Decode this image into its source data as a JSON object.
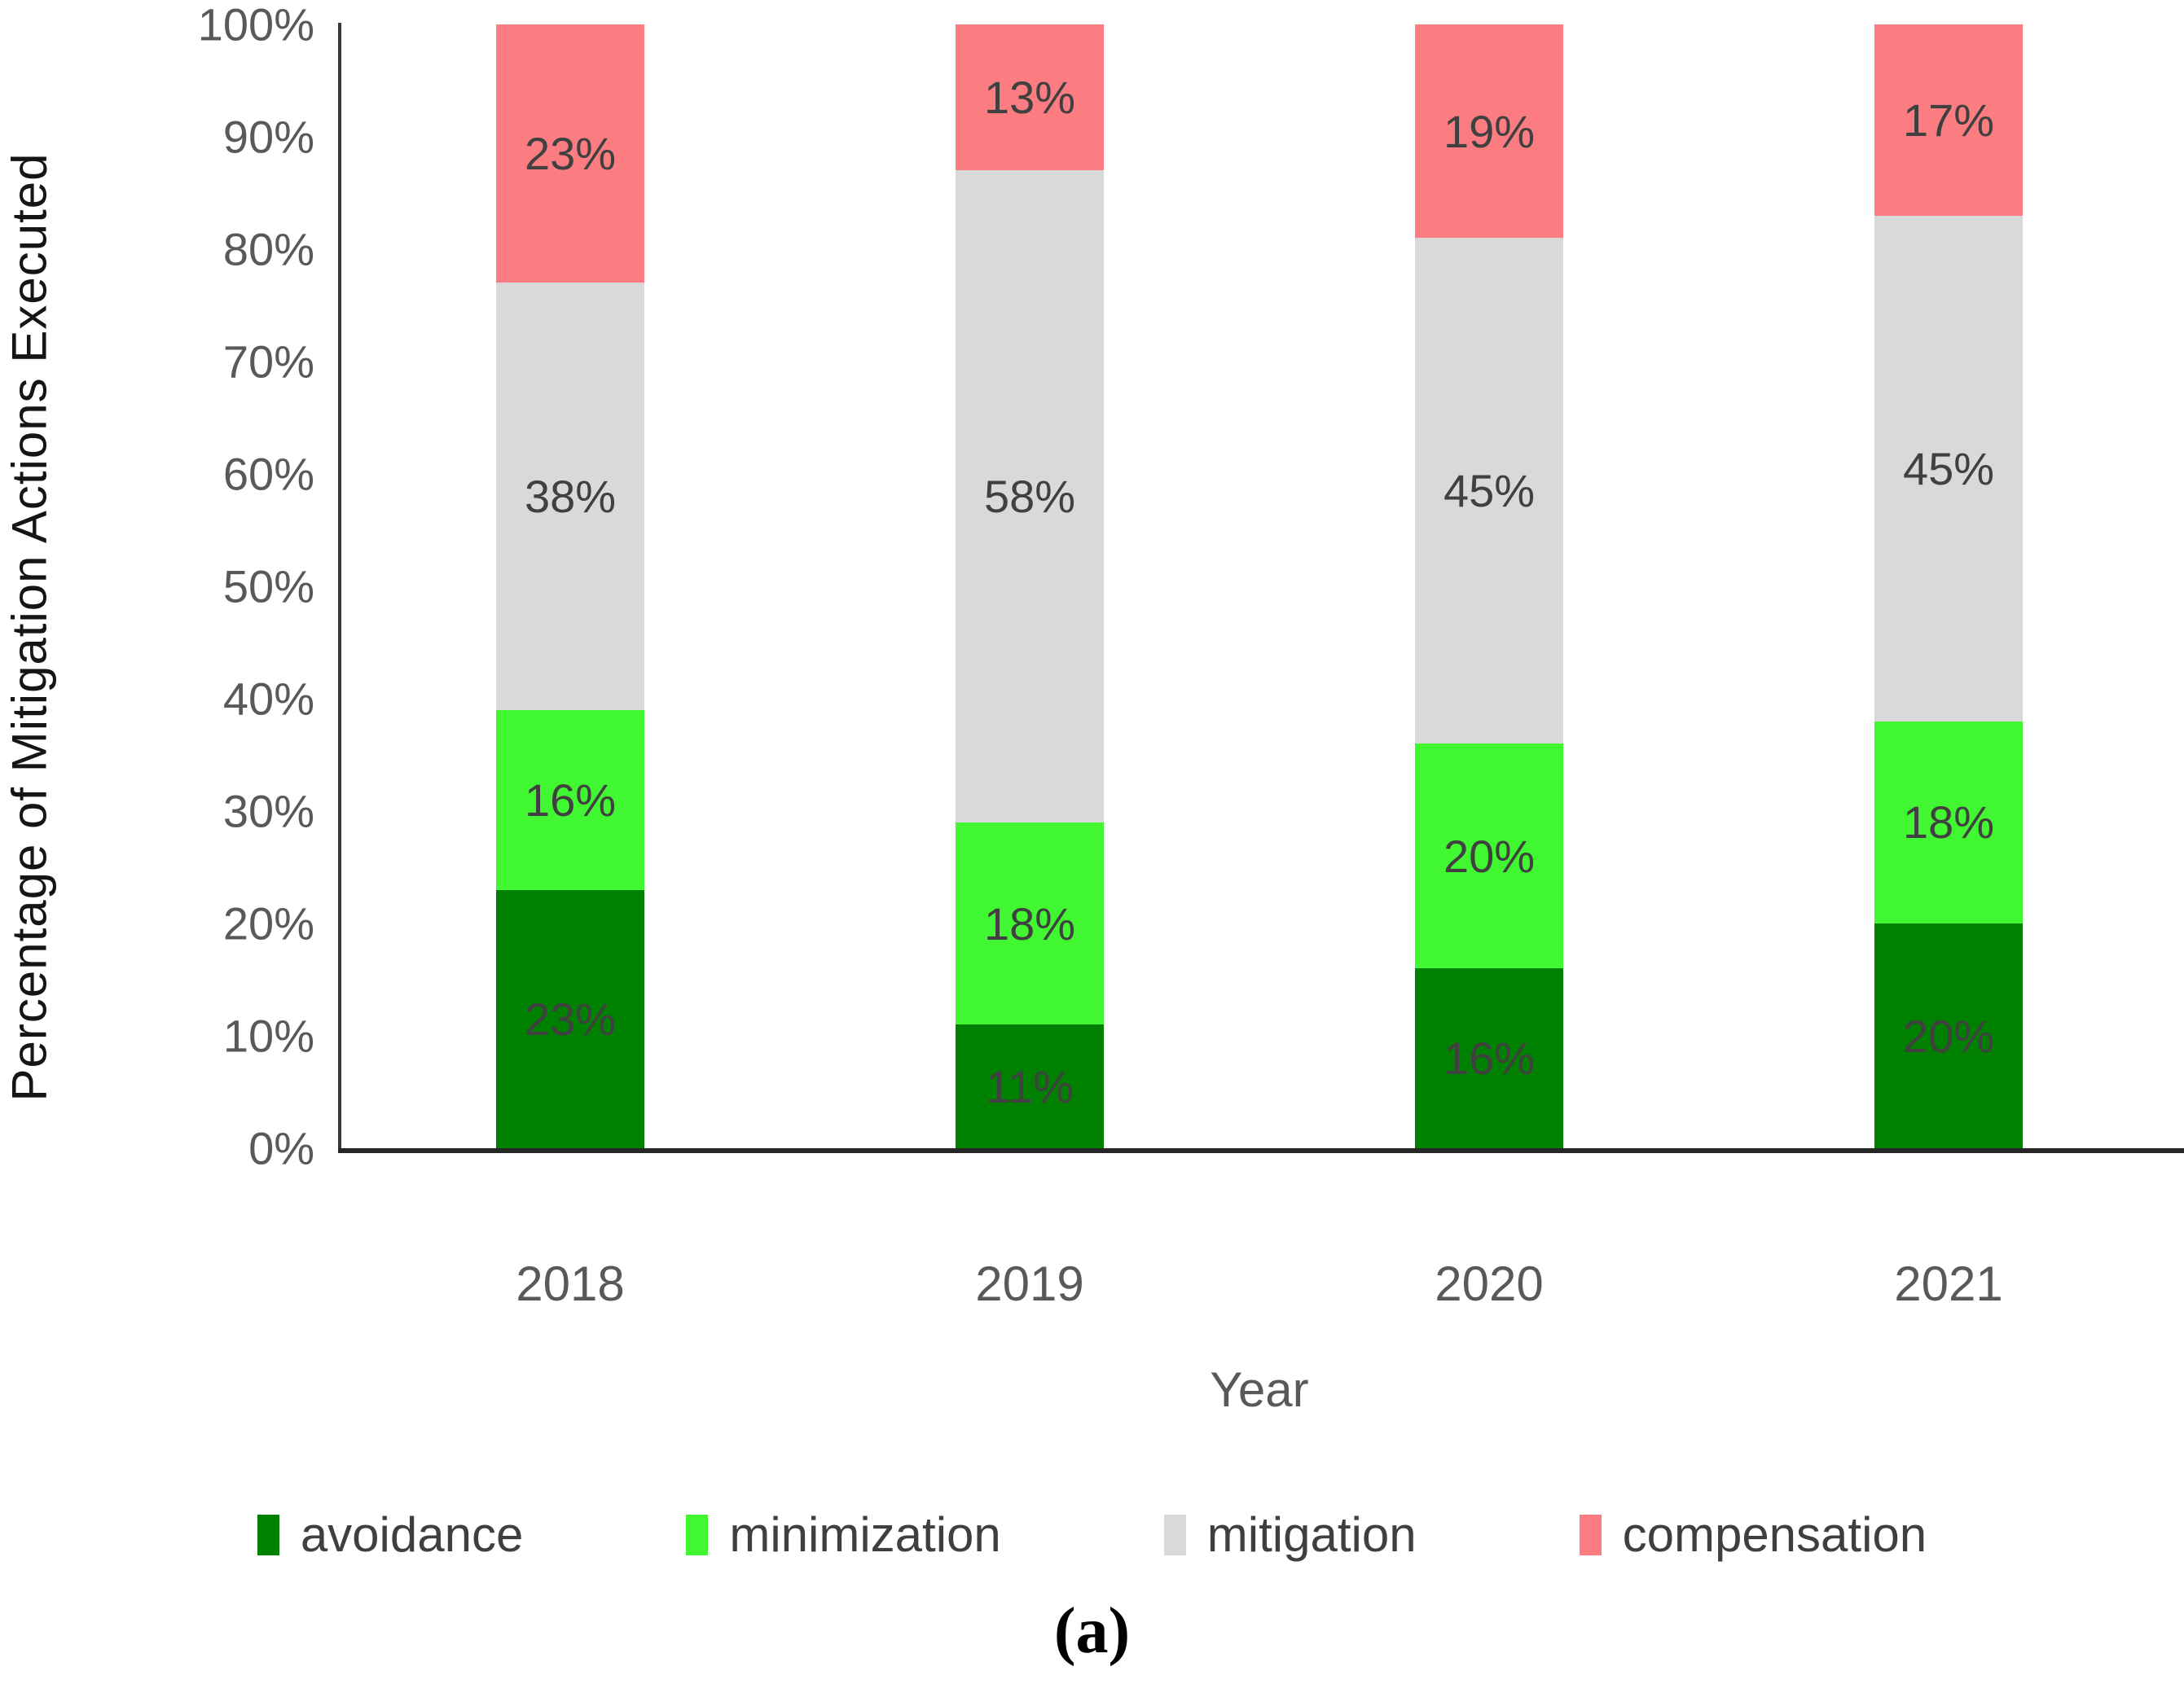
{
  "caption": "(a)",
  "colors": {
    "avoidance": "#008000",
    "minimization": "#41F731",
    "mitigation": "#D9D9D9",
    "compensation": "#FC7D81",
    "data_label": "#404040",
    "tick_label": "#595959",
    "axis_line": "#303030",
    "axis_title": "#151515"
  },
  "chart_data": {
    "type": "bar",
    "stacked": true,
    "title": "",
    "xlabel": "Year",
    "ylabel": "Percentage of Mitigation Actions Executed",
    "ylim": [
      0,
      100
    ],
    "grid": false,
    "legend_position": "bottom",
    "categories": [
      "2018",
      "2019",
      "2020",
      "2021"
    ],
    "yticks": [
      "0%",
      "10%",
      "20%",
      "30%",
      "40%",
      "50%",
      "60%",
      "70%",
      "80%",
      "90%",
      "100%"
    ],
    "series": [
      {
        "name": "avoidance",
        "color": "#008000",
        "values": [
          23,
          11,
          16,
          20
        ],
        "labels": [
          "23%",
          "11%",
          "16%",
          "20%"
        ]
      },
      {
        "name": "minimization",
        "color": "#41F731",
        "values": [
          16,
          18,
          20,
          18
        ],
        "labels": [
          "16%",
          "18%",
          "20%",
          "18%"
        ]
      },
      {
        "name": "mitigation",
        "color": "#D9D9D9",
        "values": [
          38,
          58,
          45,
          45
        ],
        "labels": [
          "38%",
          "58%",
          "45%",
          "45%"
        ]
      },
      {
        "name": "compensation",
        "color": "#FC7D81",
        "values": [
          23,
          13,
          19,
          17
        ],
        "labels": [
          "23%",
          "13%",
          "19%",
          "17%"
        ]
      }
    ]
  }
}
